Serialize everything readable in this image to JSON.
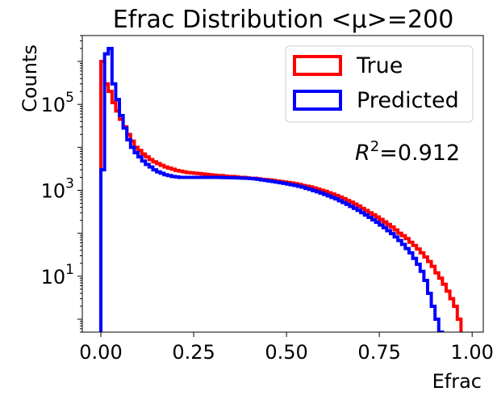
{
  "chart_data": {
    "type": "histogram",
    "title": "Efrac Distribution <μ>=200",
    "xlabel": "Efrac",
    "ylabel": "Counts",
    "yscale": "log",
    "xlim": [
      -0.05,
      1.03
    ],
    "ylim": [
      0.5,
      4000000
    ],
    "xticks": [
      {
        "value": 0.0,
        "label": "0.00"
      },
      {
        "value": 0.25,
        "label": "0.25"
      },
      {
        "value": 0.5,
        "label": "0.50"
      },
      {
        "value": 0.75,
        "label": "0.75"
      },
      {
        "value": 1.0,
        "label": "1.00"
      }
    ],
    "yticks": [
      {
        "value": 10,
        "base": "10",
        "exp": "1"
      },
      {
        "value": 1000,
        "base": "10",
        "exp": "3"
      },
      {
        "value": 100000,
        "base": "10",
        "exp": "5"
      }
    ],
    "grid": false,
    "legend_position": "top-right",
    "annotation": {
      "prefix": "R",
      "sup": "2",
      "text": "=0.912"
    },
    "bin_width": 0.01,
    "series": [
      {
        "name": "True",
        "color": "#ff0000",
        "bin_start": 0.0,
        "values": [
          1000000,
          300000,
          200000,
          110000,
          70000,
          45000,
          30000,
          20000,
          14000,
          10000,
          8500,
          7000,
          6000,
          5200,
          4600,
          4200,
          3800,
          3500,
          3300,
          3100,
          2900,
          2800,
          2700,
          2600,
          2550,
          2500,
          2450,
          2400,
          2350,
          2300,
          2250,
          2200,
          2200,
          2150,
          2100,
          2100,
          2050,
          2000,
          2000,
          1950,
          1900,
          1900,
          1850,
          1800,
          1780,
          1750,
          1700,
          1650,
          1600,
          1560,
          1520,
          1480,
          1420,
          1370,
          1300,
          1250,
          1200,
          1130,
          1070,
          1000,
          950,
          880,
          820,
          760,
          700,
          640,
          580,
          530,
          480,
          430,
          380,
          340,
          300,
          270,
          240,
          210,
          185,
          160,
          140,
          120,
          100,
          88,
          75,
          62,
          52,
          43,
          35,
          28,
          22,
          17,
          12,
          9,
          6.5,
          4.5,
          3,
          2,
          1
        ]
      },
      {
        "name": "Predicted",
        "color": "#0000ff",
        "bin_start": 0.0,
        "values": [
          3000,
          1500000,
          2000000,
          300000,
          130000,
          55000,
          28000,
          15000,
          10000,
          7500,
          6000,
          4800,
          4000,
          3500,
          3000,
          2700,
          2500,
          2300,
          2200,
          2100,
          2050,
          2000,
          2000,
          2000,
          2000,
          2000,
          2000,
          2000,
          2000,
          2000,
          2000,
          2000,
          1990,
          1980,
          1970,
          1960,
          1950,
          1940,
          1920,
          1900,
          1880,
          1850,
          1800,
          1750,
          1700,
          1650,
          1600,
          1550,
          1500,
          1450,
          1400,
          1350,
          1300,
          1240,
          1180,
          1110,
          1050,
          980,
          920,
          860,
          800,
          740,
          680,
          630,
          570,
          520,
          470,
          420,
          380,
          340,
          300,
          265,
          235,
          205,
          180,
          155,
          135,
          115,
          98,
          82,
          68,
          55,
          44,
          35,
          26,
          19,
          13,
          8,
          4,
          2,
          1,
          0.5
        ]
      }
    ]
  }
}
